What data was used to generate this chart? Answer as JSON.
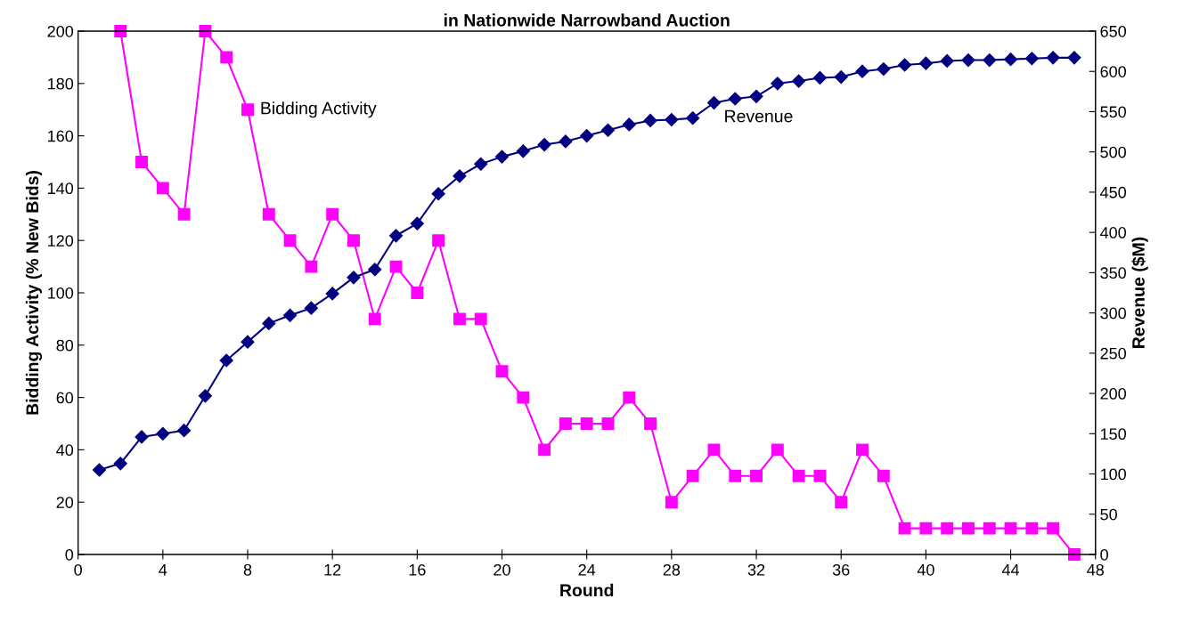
{
  "chart_data": {
    "type": "line",
    "title": "in Nationwide Narrowband Auction",
    "xlabel": "Round",
    "ylabel": "Bidding Activity (% New Bids)",
    "y2label": "Revenue ($M)",
    "x": [
      1,
      2,
      3,
      4,
      5,
      6,
      7,
      8,
      9,
      10,
      11,
      12,
      13,
      14,
      15,
      16,
      17,
      18,
      19,
      20,
      21,
      22,
      23,
      24,
      25,
      26,
      27,
      28,
      29,
      30,
      31,
      32,
      33,
      34,
      35,
      36,
      37,
      38,
      39,
      40,
      41,
      42,
      43,
      44,
      45,
      46,
      47
    ],
    "series": [
      {
        "name": "Bidding Activity",
        "color": "#ff00ff",
        "marker": "square",
        "values": [
          null,
          200,
          150,
          140,
          130,
          200,
          190,
          170,
          130,
          120,
          110,
          130,
          120,
          90,
          110,
          100,
          120,
          90,
          90,
          70,
          60,
          40,
          50,
          50,
          50,
          60,
          50,
          20,
          30,
          40,
          30,
          30,
          40,
          30,
          30,
          20,
          40,
          30,
          10,
          10,
          10,
          10,
          10,
          10,
          10,
          10,
          0
        ]
      },
      {
        "name": "Revenue",
        "color": "#000080",
        "marker": "diamond",
        "axis": "y2",
        "values": [
          105,
          113,
          146,
          150,
          154,
          197,
          241,
          264,
          287,
          297,
          306,
          324,
          344,
          354,
          396,
          411,
          448,
          470,
          485,
          494,
          501,
          509,
          513,
          520,
          527,
          534,
          539,
          540,
          542,
          561,
          566,
          569,
          585,
          588,
          592,
          593,
          600,
          603,
          608,
          610,
          613,
          614,
          614,
          615,
          616,
          617,
          617
        ]
      }
    ],
    "xlim": [
      0,
      48
    ],
    "xticks": [
      0,
      4,
      8,
      12,
      16,
      20,
      24,
      28,
      32,
      36,
      40,
      44,
      48
    ],
    "ylim": [
      0,
      200
    ],
    "yticks": [
      0,
      20,
      40,
      60,
      80,
      100,
      120,
      140,
      160,
      180,
      200
    ],
    "y2lim": [
      0,
      650
    ],
    "y2ticks": [
      0,
      50,
      100,
      150,
      200,
      250,
      300,
      350,
      400,
      450,
      500,
      550,
      600,
      650
    ],
    "grid": false,
    "legend": false,
    "line_style": "solid"
  }
}
